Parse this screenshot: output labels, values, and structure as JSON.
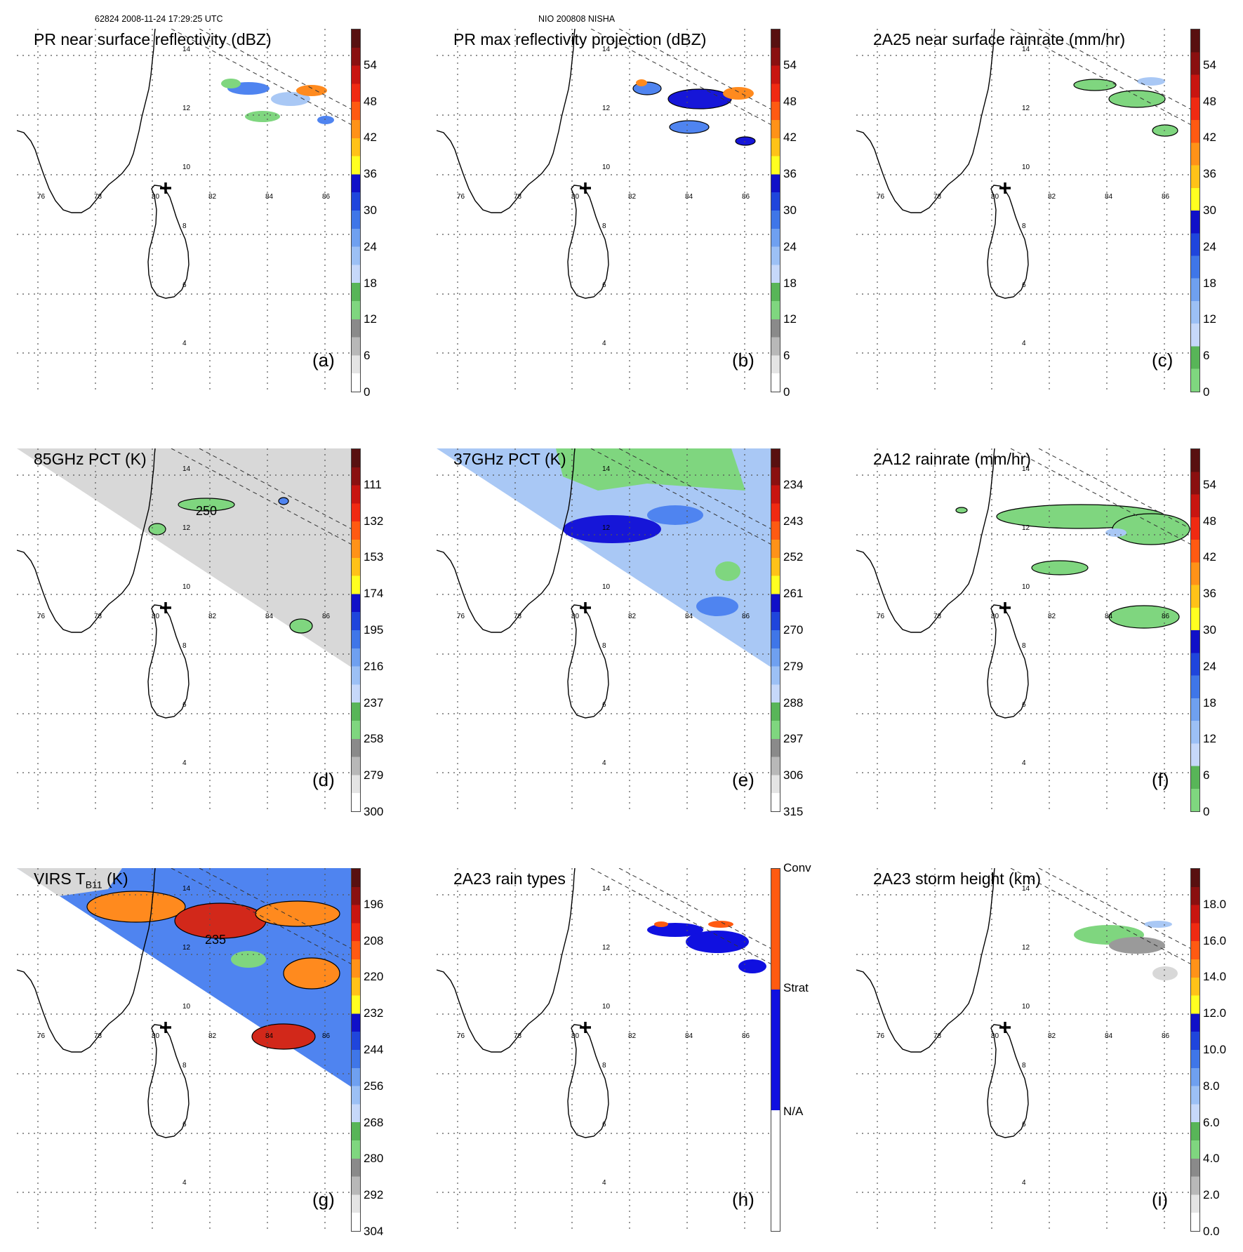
{
  "header": {
    "left": "62824 2008-11-24 17:29:25 UTC",
    "center": "NIO 200808 NISHA"
  },
  "map_labels": {
    "lat": [
      "14",
      "12",
      "10",
      "8",
      "6",
      "4"
    ],
    "lon": [
      "76",
      "78",
      "80",
      "82",
      "84",
      "86"
    ]
  },
  "colors": {
    "rain_green": "#7fd67f",
    "light_blue": "#a9c8f5",
    "mid_blue": "#4f84f0",
    "deep_blue": "#1616d8",
    "convective": "#ff5a10",
    "gray_warm": "#d8d8d8",
    "ir_orange": "#ff8a1e",
    "ir_red": "#d2281a"
  },
  "panels": [
    {
      "id": "a",
      "title": "PR near surface reflectivity (dBZ)",
      "label": "(a)",
      "colorbar": [
        "0",
        "6",
        "12",
        "18",
        "24",
        "30",
        "36",
        "42",
        "48",
        "54"
      ],
      "colorbar_colors": [
        "#ffffff",
        "#e4e4e4",
        "#b8b8b8",
        "#8a8a8a",
        "#7fd67f",
        "#58b558",
        "#c6d8fa",
        "#9cc0f5",
        "#6fa0f0",
        "#3f76e8",
        "#1f45dc",
        "#1010c8",
        "#ffff20",
        "#ffc218",
        "#ff9218",
        "#ff5a12",
        "#f02a12",
        "#c81510",
        "#8a1010",
        "#581010"
      ]
    },
    {
      "id": "b",
      "title": "PR max reflectivity projection (dBZ)",
      "label": "(b)",
      "colorbar": [
        "0",
        "6",
        "12",
        "18",
        "24",
        "30",
        "36",
        "42",
        "48",
        "54"
      ],
      "colorbar_colors": [
        "#ffffff",
        "#e4e4e4",
        "#b8b8b8",
        "#8a8a8a",
        "#7fd67f",
        "#58b558",
        "#c6d8fa",
        "#9cc0f5",
        "#6fa0f0",
        "#3f76e8",
        "#1f45dc",
        "#1010c8",
        "#ffff20",
        "#ffc218",
        "#ff9218",
        "#ff5a12",
        "#f02a12",
        "#c81510",
        "#8a1010",
        "#581010"
      ]
    },
    {
      "id": "c",
      "title": "2A25 near surface rainrate (mm/hr)",
      "label": "(c)",
      "colorbar": [
        "0",
        "6",
        "12",
        "18",
        "24",
        "30",
        "36",
        "42",
        "48",
        "54"
      ],
      "colorbar_colors": [
        "#7fd67f",
        "#58b558",
        "#c6d8fa",
        "#9cc0f5",
        "#6fa0f0",
        "#3f76e8",
        "#1f45dc",
        "#1010c8",
        "#ffff20",
        "#ffc218",
        "#ff9218",
        "#ff5a12",
        "#f02a12",
        "#c81510",
        "#8a1010",
        "#581010"
      ]
    },
    {
      "id": "d",
      "title": "85GHz PCT (K)",
      "label": "(d)",
      "colorbar": [
        "300",
        "279",
        "258",
        "237",
        "216",
        "195",
        "174",
        "153",
        "132",
        "111"
      ],
      "colorbar_colors": [
        "#ffffff",
        "#e4e4e4",
        "#b8b8b8",
        "#8a8a8a",
        "#7fd67f",
        "#58b558",
        "#c6d8fa",
        "#9cc0f5",
        "#6fa0f0",
        "#3f76e8",
        "#1f45dc",
        "#1010c8",
        "#ffff20",
        "#ffc218",
        "#ff9218",
        "#ff5a12",
        "#f02a12",
        "#c81510",
        "#8a1010",
        "#581010"
      ]
    },
    {
      "id": "e",
      "title": "37GHz PCT (K)",
      "label": "(e)",
      "colorbar": [
        "315",
        "306",
        "297",
        "288",
        "279",
        "270",
        "261",
        "252",
        "243",
        "234"
      ],
      "colorbar_colors": [
        "#ffffff",
        "#e4e4e4",
        "#b8b8b8",
        "#8a8a8a",
        "#7fd67f",
        "#58b558",
        "#c6d8fa",
        "#9cc0f5",
        "#6fa0f0",
        "#3f76e8",
        "#1f45dc",
        "#1010c8",
        "#ffff20",
        "#ffc218",
        "#ff9218",
        "#ff5a12",
        "#f02a12",
        "#c81510",
        "#8a1010",
        "#581010"
      ]
    },
    {
      "id": "f",
      "title": "2A12 rainrate (mm/hr)",
      "label": "(f)",
      "colorbar": [
        "0",
        "6",
        "12",
        "18",
        "24",
        "30",
        "36",
        "42",
        "48",
        "54"
      ],
      "colorbar_colors": [
        "#7fd67f",
        "#58b558",
        "#c6d8fa",
        "#9cc0f5",
        "#6fa0f0",
        "#3f76e8",
        "#1f45dc",
        "#1010c8",
        "#ffff20",
        "#ffc218",
        "#ff9218",
        "#ff5a12",
        "#f02a12",
        "#c81510",
        "#8a1010",
        "#581010"
      ]
    },
    {
      "id": "g",
      "title": "VIRS T",
      "title_sub": "B11",
      "title_suffix": " (K)",
      "label": "(g)",
      "colorbar": [
        "304",
        "292",
        "280",
        "268",
        "256",
        "244",
        "232",
        "220",
        "208",
        "196"
      ],
      "colorbar_colors": [
        "#ffffff",
        "#e4e4e4",
        "#b8b8b8",
        "#8a8a8a",
        "#7fd67f",
        "#58b558",
        "#c6d8fa",
        "#9cc0f5",
        "#6fa0f0",
        "#3f76e8",
        "#1f45dc",
        "#1010c8",
        "#ffff20",
        "#ffc218",
        "#ff9218",
        "#ff5a12",
        "#f02a12",
        "#c81510",
        "#8a1010",
        "#581010"
      ]
    },
    {
      "id": "h",
      "title": "2A23 rain types",
      "label": "(h)",
      "colorbar": [
        "N/A",
        "Strat",
        "Conv"
      ],
      "colorbar_colors": [
        "#ffffff",
        "#1010e0",
        "#ff5a10"
      ]
    },
    {
      "id": "i",
      "title": "2A23 storm height (km)",
      "label": "(i)",
      "colorbar": [
        "0.0",
        "2.0",
        "4.0",
        "6.0",
        "8.0",
        "10.0",
        "12.0",
        "14.0",
        "16.0",
        "18.0"
      ],
      "colorbar_colors": [
        "#ffffff",
        "#e4e4e4",
        "#b8b8b8",
        "#8a8a8a",
        "#7fd67f",
        "#58b558",
        "#c6d8fa",
        "#9cc0f5",
        "#6fa0f0",
        "#3f76e8",
        "#1f45dc",
        "#1010c8",
        "#ffff20",
        "#ffc218",
        "#ff9218",
        "#ff5a12",
        "#f02a12",
        "#c81510",
        "#8a1010",
        "#581010"
      ]
    }
  ],
  "contour_labels": {
    "d": "250",
    "g": "235"
  }
}
